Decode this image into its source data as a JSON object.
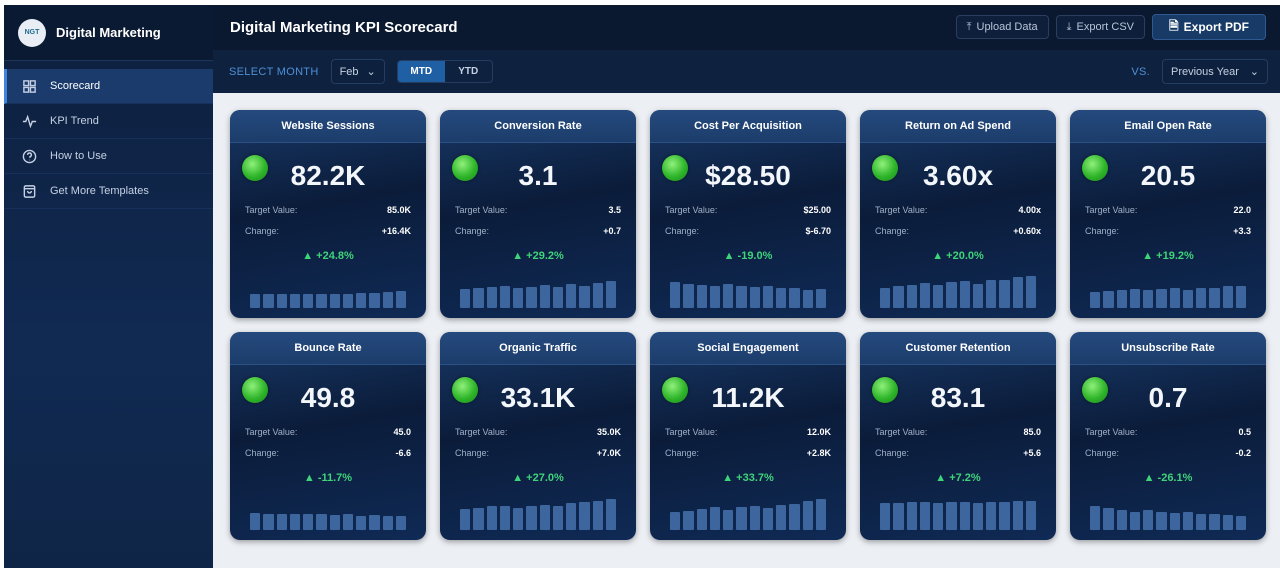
{
  "sidebar": {
    "logo_text": "NGT",
    "brand": "Digital Marketing",
    "items": [
      {
        "label": "Scorecard",
        "icon": "grid-icon",
        "active": true
      },
      {
        "label": "KPI Trend",
        "icon": "pulse-icon"
      },
      {
        "label": "How to Use",
        "icon": "help-circle-icon"
      },
      {
        "label": "Get More Templates",
        "icon": "shopping-bag-icon"
      }
    ]
  },
  "header": {
    "title": "Digital Marketing KPI Scorecard",
    "upload": "Upload Data",
    "export_csv": "Export CSV",
    "export_pdf": "Export PDF"
  },
  "filters": {
    "month_label": "SELECT MONTH",
    "month": "Feb",
    "mtd": "MTD",
    "ytd": "YTD",
    "mode_selected": "MTD",
    "vs_label": "VS.",
    "compare": "Previous Year"
  },
  "colors": {
    "accent": "#1f5fa3",
    "positive": "#3fd37a",
    "status_green": "#2fb52a",
    "bar": "#3d669e"
  },
  "labels": {
    "target": "Target Value:",
    "change": "Change:"
  },
  "cards": [
    {
      "title": "Website Sessions",
      "value": "82.2K",
      "target": "85.0K",
      "change": "+16.4K",
      "pct": "▲ +24.8%",
      "trend": [
        40,
        40,
        42,
        42,
        40,
        42,
        42,
        40,
        44,
        44,
        46,
        50
      ]
    },
    {
      "title": "Conversion Rate",
      "value": "3.1",
      "target": "3.5",
      "change": "+0.7",
      "pct": "▲ +29.2%",
      "trend": [
        56,
        60,
        62,
        66,
        60,
        62,
        68,
        62,
        70,
        66,
        74,
        78
      ]
    },
    {
      "title": "Cost Per Acquisition",
      "value": "$28.50",
      "target": "$25.00",
      "change": "$-6.70",
      "pct": "▲ -19.0%",
      "trend": [
        76,
        70,
        68,
        64,
        70,
        64,
        62,
        66,
        58,
        60,
        54,
        56
      ]
    },
    {
      "title": "Return on Ad Spend",
      "value": "3.60x",
      "target": "4.00x",
      "change": "+0.60x",
      "pct": "▲ +20.0%",
      "trend": [
        60,
        64,
        68,
        74,
        68,
        76,
        78,
        70,
        82,
        82,
        90,
        94
      ]
    },
    {
      "title": "Email Open Rate",
      "value": "20.5",
      "target": "22.0",
      "change": "+3.3",
      "pct": "▲ +19.2%",
      "trend": [
        46,
        50,
        52,
        56,
        52,
        56,
        58,
        54,
        60,
        60,
        64,
        64
      ]
    },
    {
      "title": "Bounce Rate",
      "value": "49.8",
      "target": "45.0",
      "change": "-6.6",
      "pct": "▲ -11.7%",
      "trend": [
        50,
        48,
        46,
        46,
        48,
        46,
        44,
        46,
        42,
        44,
        40,
        40
      ]
    },
    {
      "title": "Organic Traffic",
      "value": "33.1K",
      "target": "35.0K",
      "change": "+7.0K",
      "pct": "▲ +27.0%",
      "trend": [
        62,
        66,
        70,
        72,
        66,
        72,
        74,
        70,
        78,
        82,
        86,
        90
      ]
    },
    {
      "title": "Social Engagement",
      "value": "11.2K",
      "target": "12.0K",
      "change": "+2.8K",
      "pct": "▲ +33.7%",
      "trend": [
        52,
        56,
        62,
        68,
        60,
        68,
        70,
        64,
        74,
        76,
        86,
        92
      ]
    },
    {
      "title": "Customer Retention",
      "value": "83.1",
      "target": "85.0",
      "change": "+5.6",
      "pct": "▲ +7.2%",
      "trend": [
        80,
        80,
        82,
        82,
        80,
        82,
        82,
        80,
        82,
        82,
        84,
        84
      ]
    },
    {
      "title": "Unsubscribe Rate",
      "value": "0.7",
      "target": "0.5",
      "change": "-0.2",
      "pct": "▲ -26.1%",
      "trend": [
        70,
        64,
        58,
        52,
        60,
        52,
        50,
        54,
        46,
        48,
        44,
        42
      ]
    }
  ]
}
